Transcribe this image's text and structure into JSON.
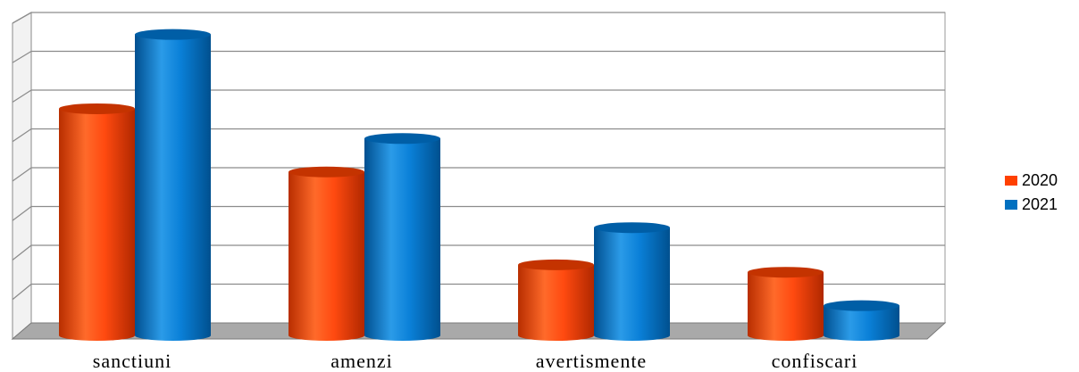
{
  "chart_data": {
    "type": "bar",
    "categories": [
      "sanctiuni",
      "amenzi",
      "avertismente",
      "confiscari"
    ],
    "series": [
      {
        "name": "2020",
        "color": "#ff4000",
        "values": [
          6.1,
          4.4,
          1.9,
          1.7
        ]
      },
      {
        "name": "2021",
        "color": "#0070c0",
        "values": [
          8.1,
          5.3,
          2.9,
          0.8
        ]
      }
    ],
    "ylim": [
      0,
      8.5
    ],
    "grid": true,
    "legend_position": "right",
    "style": "3d-cylinder"
  }
}
